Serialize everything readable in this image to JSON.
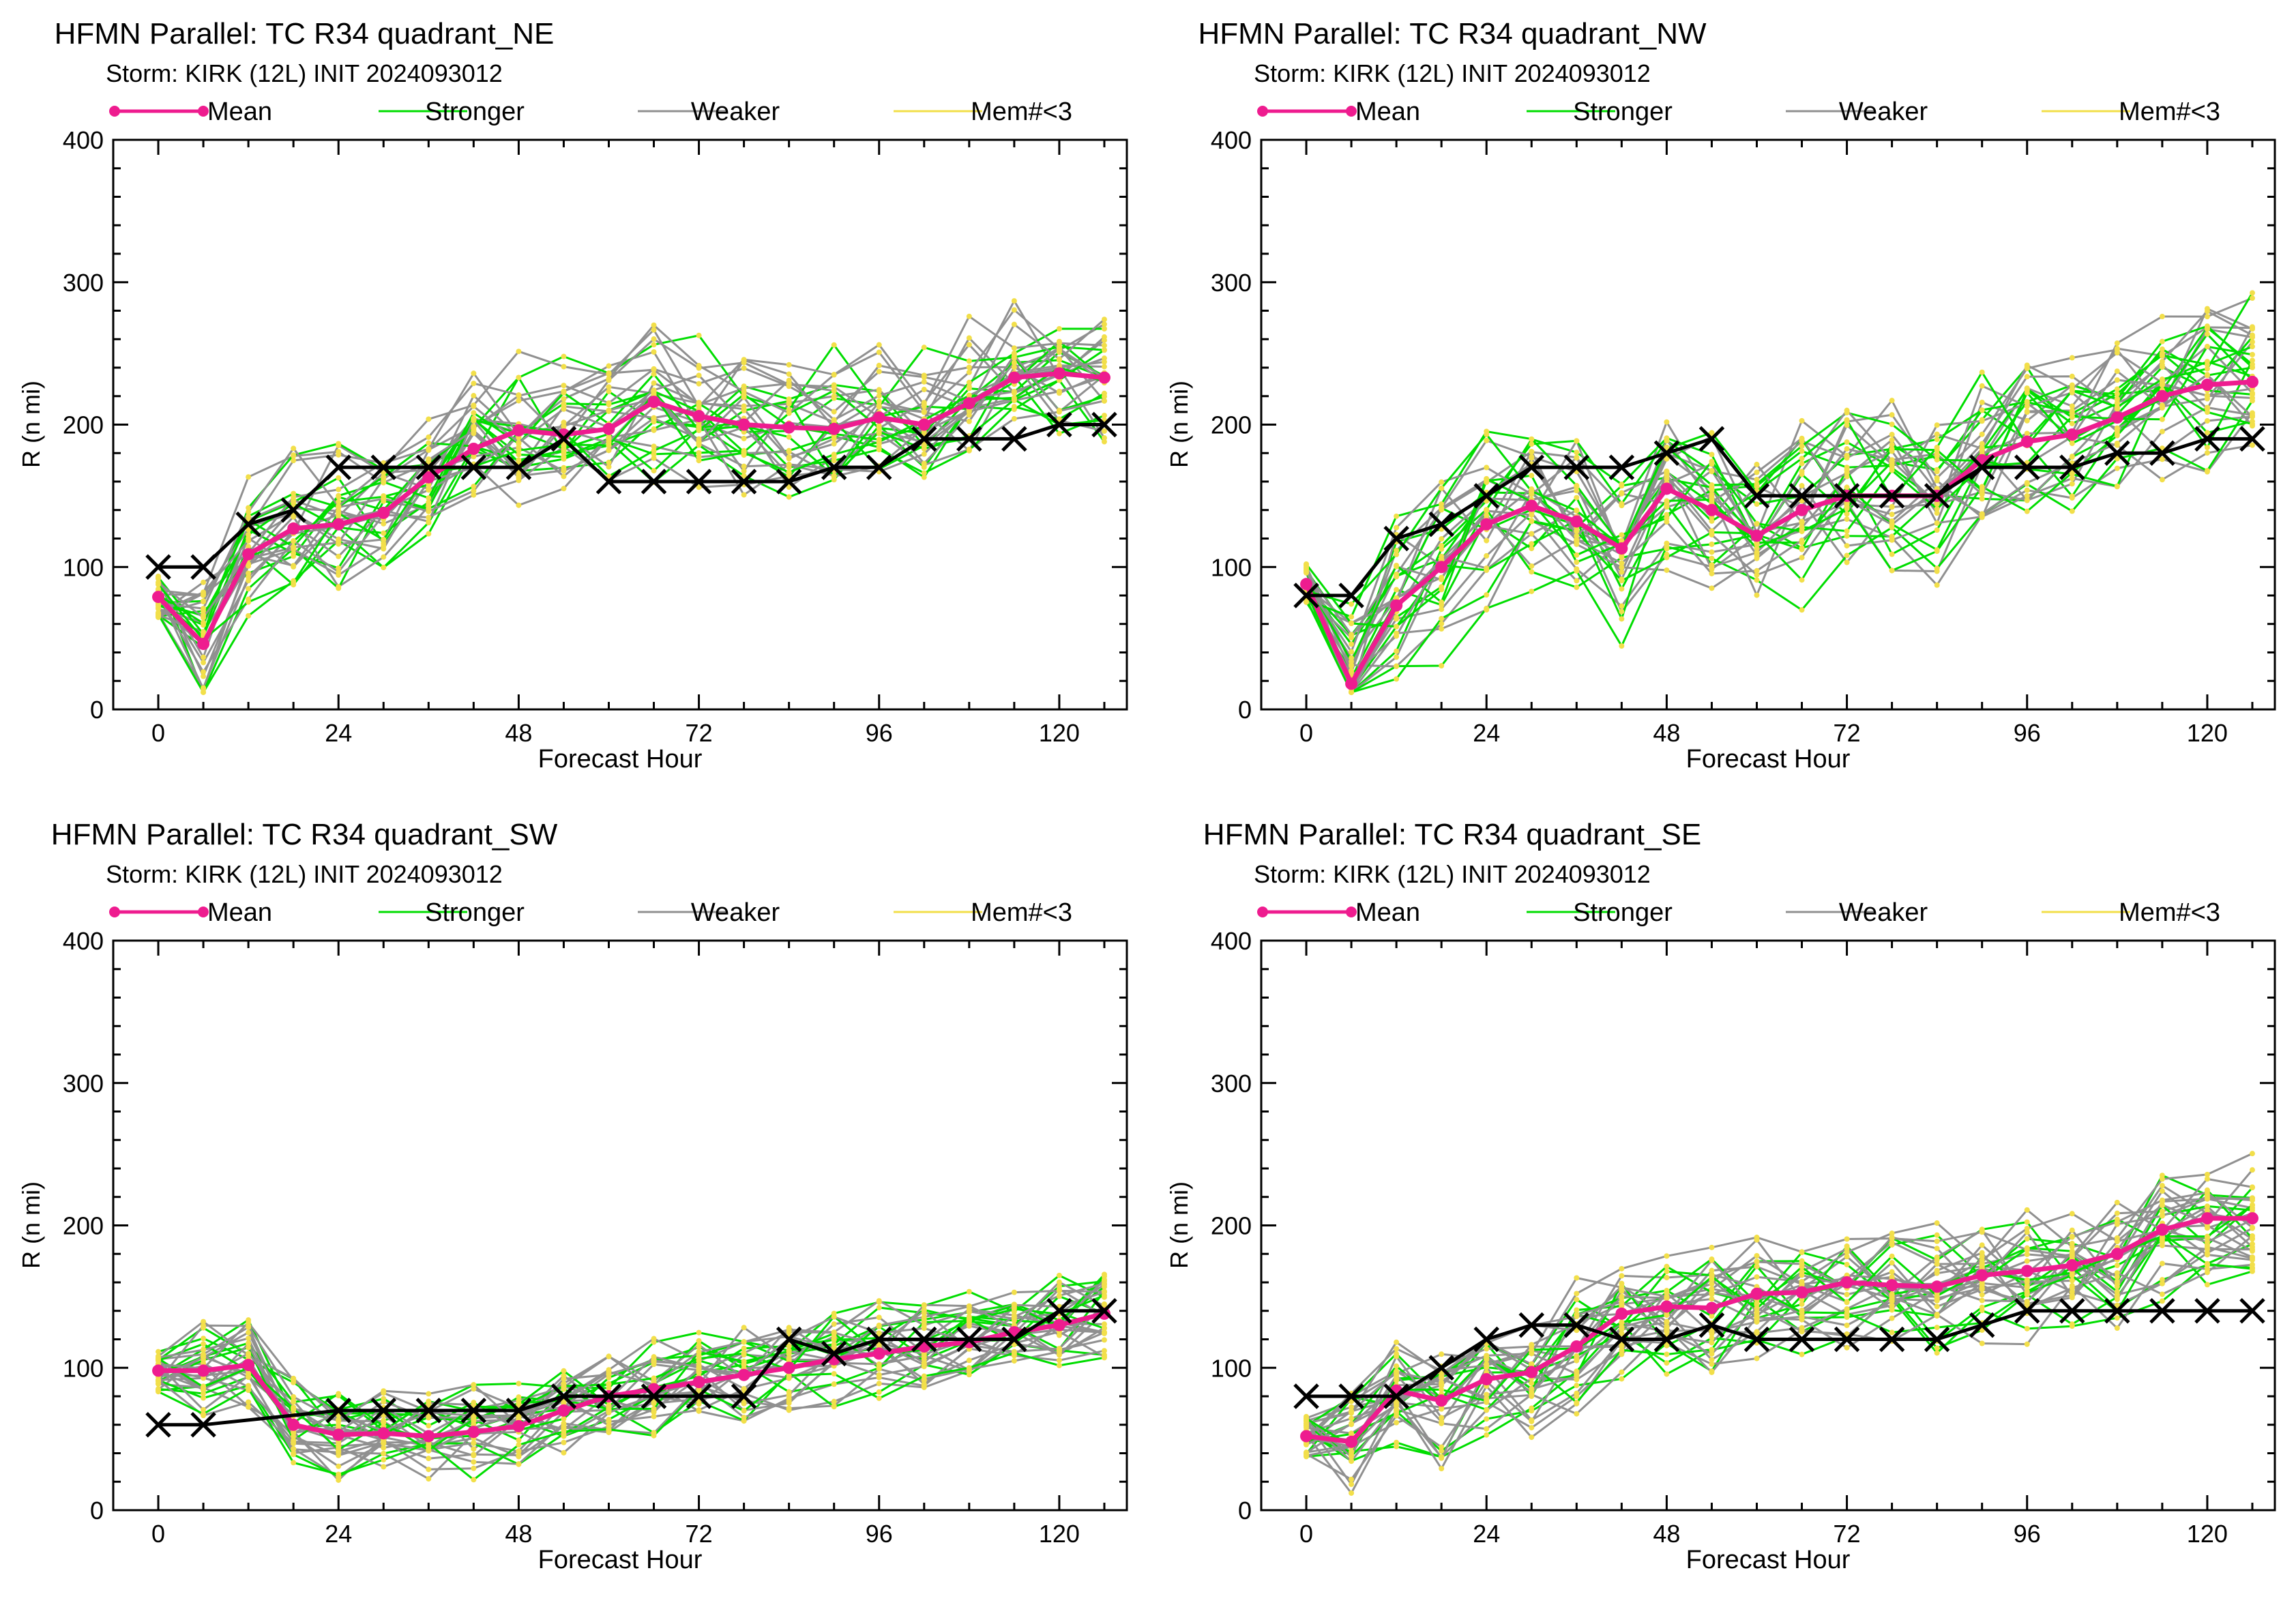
{
  "chart_data": [
    {
      "type": "line",
      "title": "HFMN Parallel: TC  R34 quadrant_NE",
      "subtitle": "Storm: KIRK (12L) INIT 2024093012",
      "xlabel": "Forecast Hour",
      "ylabel": "R (n mi)",
      "xlim": [
        -6,
        129
      ],
      "ylim": [
        0,
        400
      ],
      "xticks": [
        0,
        24,
        48,
        72,
        96,
        120
      ],
      "yticks": [
        0,
        100,
        200,
        300,
        400
      ],
      "legend": [
        "Mean",
        "Stronger",
        "Weaker",
        "Mem#<3"
      ],
      "legend_position": "top",
      "grid": false,
      "x": [
        0,
        6,
        12,
        18,
        24,
        30,
        36,
        42,
        48,
        54,
        60,
        66,
        72,
        78,
        84,
        90,
        96,
        102,
        108,
        114,
        120,
        126
      ],
      "series": [
        {
          "name": "Mean",
          "color": "#ee1c8f",
          "values": [
            79,
            46,
            109,
            127,
            130,
            138,
            163,
            183,
            196,
            193,
            197,
            216,
            206,
            200,
            198,
            197,
            205,
            200,
            215,
            233,
            236,
            233
          ]
        },
        {
          "name": "",
          "color": "#000000",
          "marker": "x",
          "values": [
            100,
            100,
            130,
            140,
            170,
            170,
            170,
            170,
            170,
            190,
            160,
            160,
            160,
            160,
            160,
            170,
            170,
            190,
            190,
            190,
            200,
            200
          ]
        }
      ],
      "ensemble": {
        "stronger_color": "#00dd00",
        "weaker_color": "#909090",
        "point_color": "#f2df4a",
        "members": 30,
        "seed": 11,
        "spread": 42,
        "shape": "mean"
      }
    },
    {
      "type": "line",
      "title": "HFMN Parallel: TC  R34 quadrant_NW",
      "subtitle": "Storm: KIRK (12L) INIT 2024093012",
      "xlabel": "Forecast Hour",
      "ylabel": "R (n mi)",
      "xlim": [
        -6,
        129
      ],
      "ylim": [
        0,
        400
      ],
      "xticks": [
        0,
        24,
        48,
        72,
        96,
        120
      ],
      "yticks": [
        0,
        100,
        200,
        300,
        400
      ],
      "legend": [
        "Mean",
        "Stronger",
        "Weaker",
        "Mem#<3"
      ],
      "legend_position": "top",
      "grid": false,
      "x": [
        0,
        6,
        12,
        18,
        24,
        30,
        36,
        42,
        48,
        54,
        60,
        66,
        72,
        78,
        84,
        90,
        96,
        102,
        108,
        114,
        120,
        126
      ],
      "series": [
        {
          "name": "Mean",
          "color": "#ee1c8f",
          "values": [
            88,
            18,
            73,
            100,
            130,
            143,
            132,
            113,
            155,
            140,
            122,
            140,
            150,
            150,
            150,
            175,
            188,
            193,
            205,
            220,
            228,
            230
          ]
        },
        {
          "name": "",
          "color": "#000000",
          "marker": "x",
          "values": [
            80,
            80,
            120,
            130,
            150,
            170,
            170,
            170,
            180,
            190,
            150,
            150,
            150,
            150,
            150,
            170,
            170,
            170,
            180,
            180,
            190,
            190
          ]
        }
      ],
      "ensemble": {
        "stronger_color": "#00dd00",
        "weaker_color": "#909090",
        "point_color": "#f2df4a",
        "members": 30,
        "seed": 23,
        "spread": 48,
        "shape": "mean"
      }
    },
    {
      "type": "line",
      "title": "HFMN Parallel: TC  R34 quadrant_SW",
      "subtitle": "Storm: KIRK (12L) INIT 2024093012",
      "xlabel": "Forecast Hour",
      "ylabel": "R (n mi)",
      "xlim": [
        -6,
        129
      ],
      "ylim": [
        0,
        400
      ],
      "xticks": [
        0,
        24,
        48,
        72,
        96,
        120
      ],
      "yticks": [
        0,
        100,
        200,
        300,
        400
      ],
      "legend": [
        "Mean",
        "Stronger",
        "Weaker",
        "Mem#<3"
      ],
      "legend_position": "top",
      "grid": false,
      "x": [
        0,
        6,
        12,
        18,
        24,
        30,
        36,
        42,
        48,
        54,
        60,
        66,
        72,
        78,
        84,
        90,
        96,
        102,
        108,
        114,
        120,
        126
      ],
      "series": [
        {
          "name": "Mean",
          "color": "#ee1c8f",
          "values": [
            98,
            98,
            102,
            60,
            53,
            54,
            52,
            55,
            59,
            70,
            80,
            85,
            90,
            95,
            100,
            106,
            110,
            115,
            118,
            125,
            130,
            138
          ]
        },
        {
          "name": "",
          "color": "#000000",
          "marker": "x",
          "values": [
            60,
            60,
            null,
            null,
            70,
            70,
            70,
            70,
            70,
            80,
            80,
            80,
            80,
            80,
            120,
            110,
            120,
            120,
            120,
            120,
            140,
            140
          ]
        }
      ],
      "ensemble": {
        "stronger_color": "#00dd00",
        "weaker_color": "#909090",
        "point_color": "#f2df4a",
        "members": 30,
        "seed": 37,
        "spread": 26,
        "shape": "mean"
      }
    },
    {
      "type": "line",
      "title": "HFMN Parallel: TC  R34 quadrant_SE",
      "subtitle": "Storm: KIRK (12L) INIT 2024093012",
      "xlabel": "Forecast Hour",
      "ylabel": "R (n mi)",
      "xlim": [
        -6,
        129
      ],
      "ylim": [
        0,
        400
      ],
      "xticks": [
        0,
        24,
        48,
        72,
        96,
        120
      ],
      "yticks": [
        0,
        100,
        200,
        300,
        400
      ],
      "legend": [
        "Mean",
        "Stronger",
        "Weaker",
        "Mem#<3"
      ],
      "legend_position": "top",
      "grid": false,
      "x": [
        0,
        6,
        12,
        18,
        24,
        30,
        36,
        42,
        48,
        54,
        60,
        66,
        72,
        78,
        84,
        90,
        96,
        102,
        108,
        114,
        120,
        126
      ],
      "series": [
        {
          "name": "Mean",
          "color": "#ee1c8f",
          "values": [
            52,
            48,
            84,
            77,
            92,
            97,
            115,
            138,
            143,
            142,
            152,
            153,
            160,
            158,
            157,
            165,
            168,
            172,
            180,
            197,
            205,
            205
          ]
        },
        {
          "name": "",
          "color": "#000000",
          "marker": "x",
          "values": [
            80,
            80,
            80,
            100,
            120,
            130,
            130,
            120,
            120,
            130,
            120,
            120,
            120,
            120,
            120,
            130,
            140,
            140,
            140,
            140,
            140,
            140
          ]
        }
      ],
      "ensemble": {
        "stronger_color": "#00dd00",
        "weaker_color": "#909090",
        "point_color": "#f2df4a",
        "members": 30,
        "seed": 53,
        "spread": 36,
        "shape": "mean"
      }
    }
  ]
}
